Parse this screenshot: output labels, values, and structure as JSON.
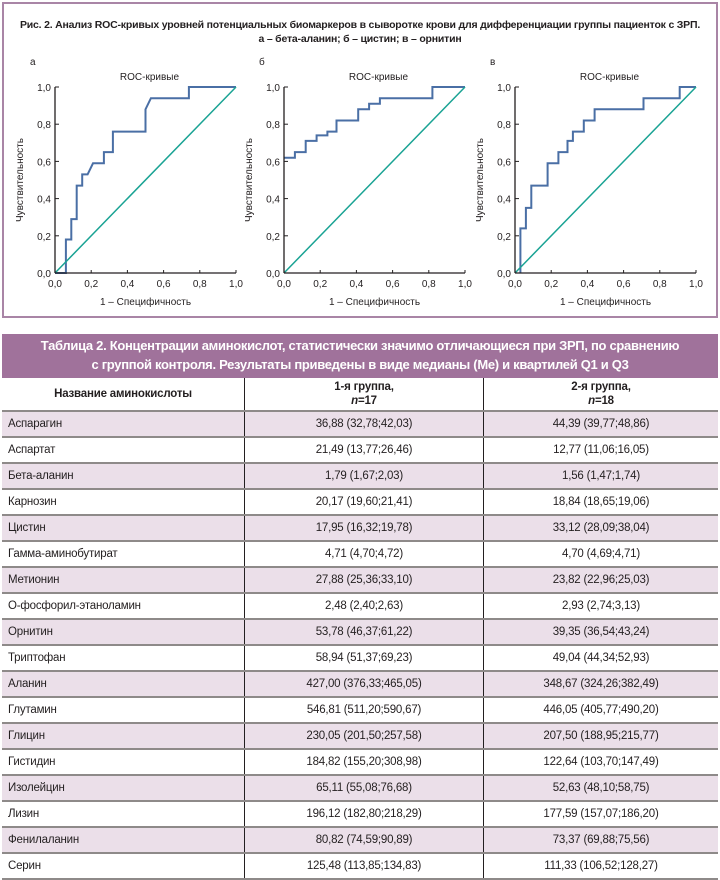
{
  "figure": {
    "caption_line1": "Рис. 2.  Анализ ROC-кривых уровней потенциальных биомаркеров в сыворотке крови для дифференциации группы пациенток с ЗРП.",
    "caption_line2": "а – бета-аланин; б – цистин; в – орнитин",
    "frame_color": "#a985a6"
  },
  "chart_data": [
    {
      "type": "line",
      "panel_label": "а",
      "title": "ROC-кривые",
      "xlabel": "1 – Специфичность",
      "ylabel": "Чувствительность",
      "xlim": [
        0,
        1
      ],
      "ylim": [
        0,
        1
      ],
      "xticks": [
        "0,0",
        "0,2",
        "0,4",
        "0,6",
        "0,8",
        "1,0"
      ],
      "yticks": [
        "0,0",
        "0,2",
        "0,4",
        "0,6",
        "0,8",
        "1,0"
      ],
      "grid": false,
      "series": [
        {
          "name": "ROC бета-аланин",
          "color": "#4a6fa5",
          "x": [
            0,
            0.06,
            0.06,
            0.09,
            0.09,
            0.12,
            0.12,
            0.15,
            0.15,
            0.18,
            0.21,
            0.27,
            0.27,
            0.32,
            0.32,
            0.5,
            0.5,
            0.53,
            0.74,
            0.74,
            1.0
          ],
          "y": [
            0,
            0,
            0.18,
            0.18,
            0.29,
            0.29,
            0.47,
            0.47,
            0.53,
            0.53,
            0.59,
            0.59,
            0.65,
            0.65,
            0.76,
            0.76,
            0.88,
            0.94,
            0.94,
            1.0,
            1.0
          ]
        },
        {
          "name": "Опорная линия",
          "color": "#1aa394",
          "x": [
            0,
            1
          ],
          "y": [
            0,
            1
          ]
        }
      ]
    },
    {
      "type": "line",
      "panel_label": "б",
      "title": "ROC-кривые",
      "xlabel": "1 – Специфичность",
      "ylabel": "Чувствительность",
      "xlim": [
        0,
        1
      ],
      "ylim": [
        0,
        1
      ],
      "xticks": [
        "0,0",
        "0,2",
        "0,4",
        "0,6",
        "0,8",
        "1,0"
      ],
      "yticks": [
        "0,0",
        "0,2",
        "0,4",
        "0,6",
        "0,8",
        "1,0"
      ],
      "grid": false,
      "series": [
        {
          "name": "ROC цистин",
          "color": "#4a6fa5",
          "x": [
            0,
            0.06,
            0.06,
            0.12,
            0.12,
            0.18,
            0.18,
            0.24,
            0.24,
            0.29,
            0.29,
            0.41,
            0.41,
            0.47,
            0.47,
            0.53,
            0.53,
            0.82,
            0.82,
            1.0
          ],
          "y": [
            0.62,
            0.62,
            0.65,
            0.65,
            0.71,
            0.71,
            0.74,
            0.74,
            0.76,
            0.76,
            0.82,
            0.82,
            0.88,
            0.88,
            0.91,
            0.91,
            0.94,
            0.94,
            1.0,
            1.0
          ]
        },
        {
          "name": "Опорная линия",
          "color": "#1aa394",
          "x": [
            0,
            1
          ],
          "y": [
            0,
            1
          ]
        }
      ]
    },
    {
      "type": "line",
      "panel_label": "в",
      "title": "ROC-кривые",
      "xlabel": "1 – Специфичность",
      "ylabel": "Чувствительность",
      "xlim": [
        0,
        1
      ],
      "ylim": [
        0,
        1
      ],
      "xticks": [
        "0,0",
        "0,2",
        "0,4",
        "0,6",
        "0,8",
        "1,0"
      ],
      "yticks": [
        "0,0",
        "0,2",
        "0,4",
        "0,6",
        "0,8",
        "1,0"
      ],
      "grid": false,
      "series": [
        {
          "name": "ROC орнитин",
          "color": "#4a6fa5",
          "x": [
            0.03,
            0.03,
            0.06,
            0.06,
            0.09,
            0.09,
            0.18,
            0.18,
            0.24,
            0.24,
            0.29,
            0.29,
            0.32,
            0.32,
            0.38,
            0.38,
            0.44,
            0.44,
            0.71,
            0.71,
            0.91,
            0.91,
            1.0
          ],
          "y": [
            0,
            0.24,
            0.24,
            0.35,
            0.35,
            0.47,
            0.47,
            0.59,
            0.59,
            0.65,
            0.65,
            0.71,
            0.71,
            0.76,
            0.76,
            0.82,
            0.82,
            0.88,
            0.88,
            0.94,
            0.94,
            1.0,
            1.0
          ]
        },
        {
          "name": "Опорная линия",
          "color": "#1aa394",
          "x": [
            0,
            1
          ],
          "y": [
            0,
            1
          ]
        }
      ]
    }
  ],
  "table": {
    "title_line1": "Таблица 2. Концентрации аминокислот, статистически значимо отличающиеся при ЗРП, по сравнению",
    "title_line2": "с группой контроля. Результаты приведены в виде медианы (Me) и квартилей Q1 и Q3",
    "header_color": "#a0729b",
    "stripe_color": "#ebdfe9",
    "columns": {
      "name": "Название аминокислоты",
      "group1_label": "1-я группа,",
      "group1_n_var": "n",
      "group1_n_val": "=17",
      "group2_label": "2-я группа,",
      "group2_n_var": "n",
      "group2_n_val": "=18"
    },
    "rows": [
      {
        "name": "Аспарагин",
        "g1": "36,88 (32,78;42,03)",
        "g2": "44,39 (39,77;48,86)"
      },
      {
        "name": "Аспартат",
        "g1": "21,49 (13,77;26,46)",
        "g2": "12,77 (11,06;16,05)"
      },
      {
        "name": "Бета-аланин",
        "g1": "1,79 (1,67;2,03)",
        "g2": "1,56 (1,47;1,74)"
      },
      {
        "name": "Карнозин",
        "g1": "20,17 (19,60;21,41)",
        "g2": "18,84 (18,65;19,06)"
      },
      {
        "name": "Цистин",
        "g1": "17,95 (16,32;19,78)",
        "g2": "33,12 (28,09;38,04)"
      },
      {
        "name": "Гамма-аминобутират",
        "g1": "4,71 (4,70;4,72)",
        "g2": "4,70 (4,69;4,71)"
      },
      {
        "name": "Метионин",
        "g1": "27,88 (25,36;33,10)",
        "g2": "23,82 (22,96;25,03)"
      },
      {
        "name": "О-фосфорил-этаноламин",
        "g1": "2,48 (2,40;2,63)",
        "g2": "2,93 (2,74;3,13)"
      },
      {
        "name": "Орнитин",
        "g1": "53,78 (46,37;61,22)",
        "g2": "39,35 (36,54;43,24)"
      },
      {
        "name": "Триптофан",
        "g1": "58,94 (51,37;69,23)",
        "g2": "49,04 (44,34;52,93)"
      },
      {
        "name": "Аланин",
        "g1": "427,00 (376,33;465,05)",
        "g2": "348,67 (324,26;382,49)"
      },
      {
        "name": "Глутамин",
        "g1": "546,81 (511,20;590,67)",
        "g2": "446,05 (405,77;490,20)"
      },
      {
        "name": "Глицин",
        "g1": "230,05 (201,50;257,58)",
        "g2": "207,50 (188,95;215,77)"
      },
      {
        "name": "Гистидин",
        "g1": "184,82 (155,20;308,98)",
        "g2": "122,64 (103,70;147,49)"
      },
      {
        "name": "Изолейцин",
        "g1": "65,11 (55,08;76,68)",
        "g2": "52,63 (48,10;58,75)"
      },
      {
        "name": "Лизин",
        "g1": "196,12 (182,80;218,29)",
        "g2": "177,59 (157,07;186,20)"
      },
      {
        "name": "Фенилаланин",
        "g1": "80,82 (74,59;90,89)",
        "g2": "73,37 (69,88;75,56)"
      },
      {
        "name": "Серин",
        "g1": "125,48 (113,85;134,83)",
        "g2": "111,33 (106,52;128,27)"
      }
    ]
  }
}
